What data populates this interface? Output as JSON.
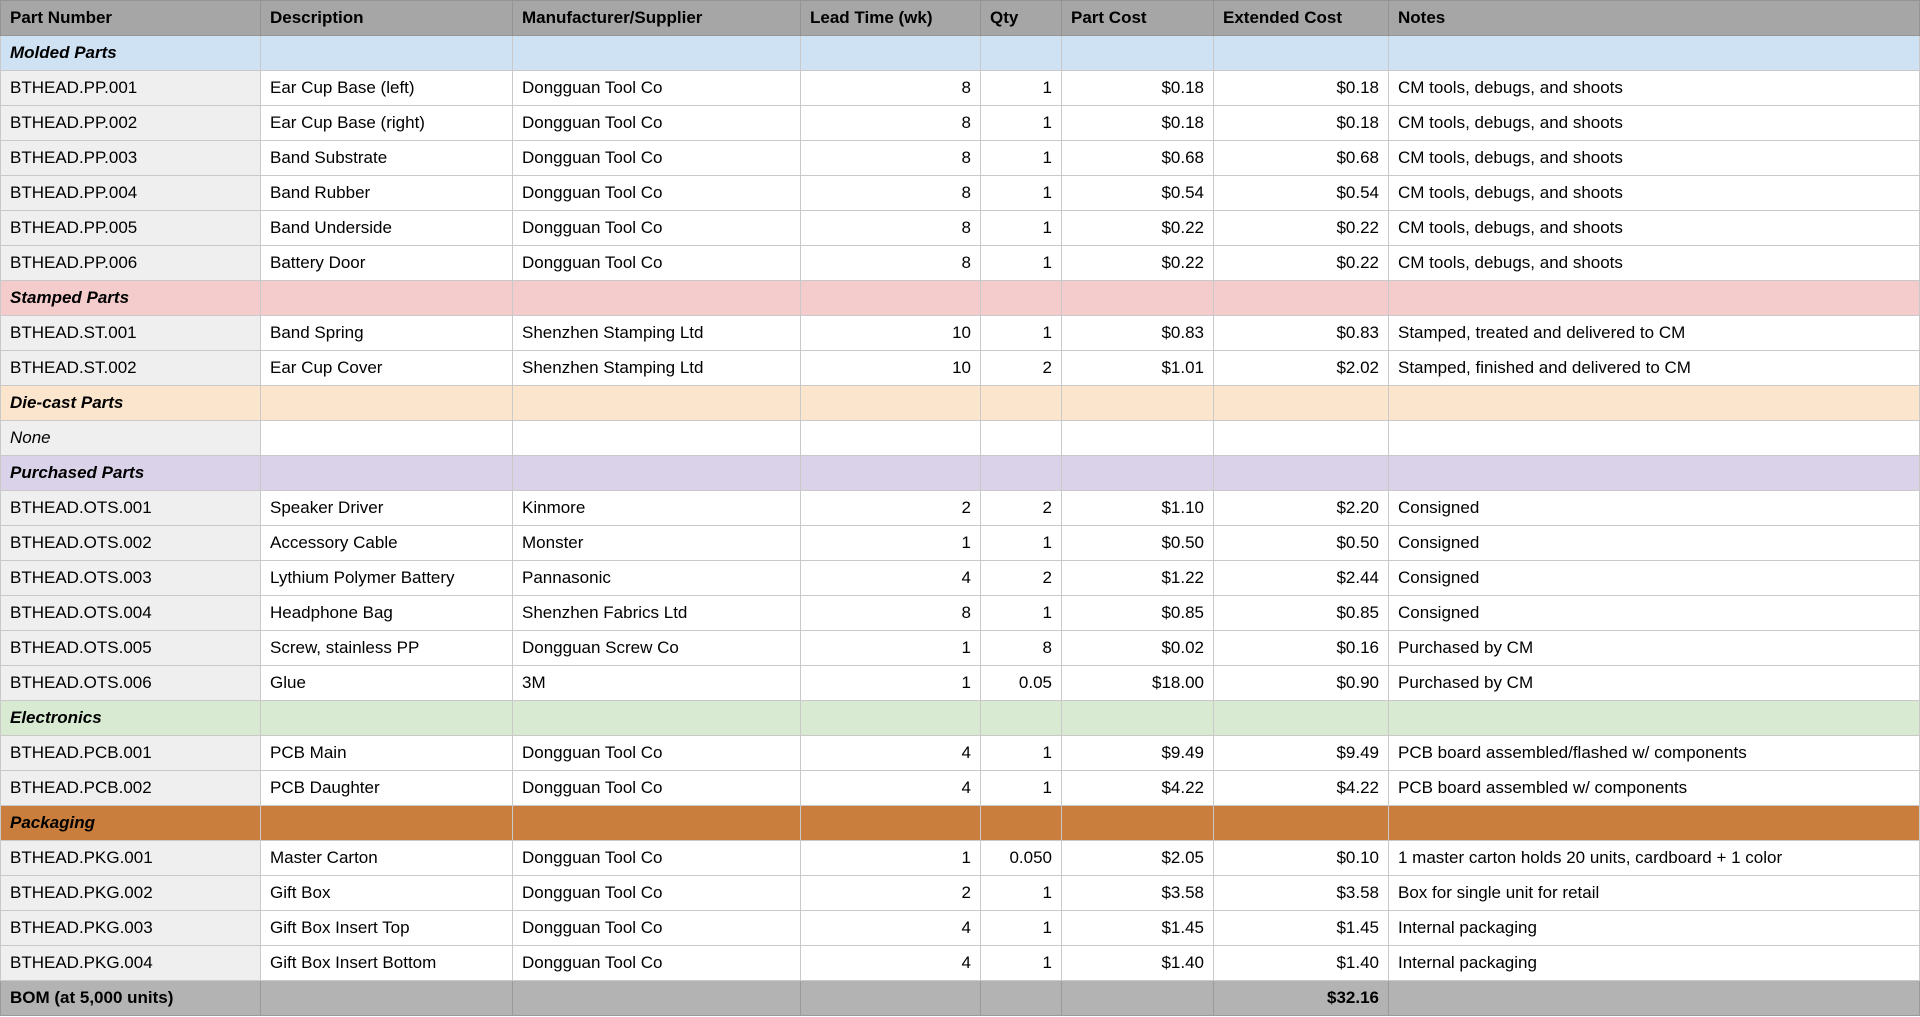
{
  "columns": [
    {
      "label": "Part Number",
      "align": "left"
    },
    {
      "label": "Description",
      "align": "left"
    },
    {
      "label": "Manufacturer/Supplier",
      "align": "left"
    },
    {
      "label": "Lead Time (wk)",
      "align": "right"
    },
    {
      "label": "Qty",
      "align": "right"
    },
    {
      "label": "Part Cost",
      "align": "right"
    },
    {
      "label": "Extended Cost",
      "align": "right"
    },
    {
      "label": "Notes",
      "align": "left"
    }
  ],
  "header_color": "#a6a6a6",
  "sections": [
    {
      "label": "Molded Parts",
      "color": "#cfe2f3",
      "rows": [
        [
          "BTHEAD.PP.001",
          "Ear Cup Base (left)",
          "Dongguan Tool Co",
          "8",
          "1",
          "$0.18",
          "$0.18",
          "CM tools, debugs, and shoots"
        ],
        [
          "BTHEAD.PP.002",
          "Ear Cup Base (right)",
          "Dongguan Tool Co",
          "8",
          "1",
          "$0.18",
          "$0.18",
          "CM tools, debugs, and shoots"
        ],
        [
          "BTHEAD.PP.003",
          "Band Substrate",
          "Dongguan Tool Co",
          "8",
          "1",
          "$0.68",
          "$0.68",
          "CM tools, debugs, and shoots"
        ],
        [
          "BTHEAD.PP.004",
          "Band Rubber",
          "Dongguan Tool Co",
          "8",
          "1",
          "$0.54",
          "$0.54",
          "CM tools, debugs, and shoots"
        ],
        [
          "BTHEAD.PP.005",
          "Band Underside",
          "Dongguan Tool Co",
          "8",
          "1",
          "$0.22",
          "$0.22",
          "CM tools, debugs, and shoots"
        ],
        [
          "BTHEAD.PP.006",
          "Battery Door",
          "Dongguan Tool Co",
          "8",
          "1",
          "$0.22",
          "$0.22",
          "CM tools, debugs, and shoots"
        ]
      ]
    },
    {
      "label": "Stamped Parts",
      "color": "#f4cccc",
      "rows": [
        [
          "BTHEAD.ST.001",
          "Band Spring",
          "Shenzhen Stamping Ltd",
          "10",
          "1",
          "$0.83",
          "$0.83",
          "Stamped, treated and delivered to CM"
        ],
        [
          "BTHEAD.ST.002",
          "Ear Cup Cover",
          "Shenzhen Stamping Ltd",
          "10",
          "2",
          "$1.01",
          "$2.02",
          "Stamped, finished and delivered to CM"
        ]
      ]
    },
    {
      "label": "Die-cast Parts",
      "color": "#fce5cd",
      "rows_style": "italic",
      "rows": [
        [
          "None",
          "",
          "",
          "",
          "",
          "",
          "",
          ""
        ]
      ]
    },
    {
      "label": "Purchased Parts",
      "color": "#d9d2e9",
      "rows": [
        [
          "BTHEAD.OTS.001",
          "Speaker Driver",
          "Kinmore",
          "2",
          "2",
          "$1.10",
          "$2.20",
          "Consigned"
        ],
        [
          "BTHEAD.OTS.002",
          "Accessory Cable",
          "Monster",
          "1",
          "1",
          "$0.50",
          "$0.50",
          "Consigned"
        ],
        [
          "BTHEAD.OTS.003",
          "Lythium Polymer Battery",
          "Pannasonic",
          "4",
          "2",
          "$1.22",
          "$2.44",
          "Consigned"
        ],
        [
          "BTHEAD.OTS.004",
          "Headphone Bag",
          "Shenzhen Fabrics Ltd",
          "8",
          "1",
          "$0.85",
          "$0.85",
          "Consigned"
        ],
        [
          "BTHEAD.OTS.005",
          "Screw, stainless PP",
          "Dongguan Screw Co",
          "1",
          "8",
          "$0.02",
          "$0.16",
          "Purchased by CM"
        ],
        [
          "BTHEAD.OTS.006",
          "Glue",
          "3M",
          "1",
          "0.05",
          "$18.00",
          "$0.90",
          "Purchased by CM"
        ]
      ]
    },
    {
      "label": "Electronics",
      "color": "#d9ead3",
      "rows": [
        [
          "BTHEAD.PCB.001",
          "PCB Main",
          "Dongguan Tool Co",
          "4",
          "1",
          "$9.49",
          "$9.49",
          "PCB board assembled/flashed w/ components"
        ],
        [
          "BTHEAD.PCB.002",
          "PCB Daughter",
          "Dongguan Tool Co",
          "4",
          "1",
          "$4.22",
          "$4.22",
          "PCB board assembled w/ components"
        ]
      ]
    },
    {
      "label": "Packaging",
      "color": "#c97e3d",
      "rows": [
        [
          "BTHEAD.PKG.001",
          "Master Carton",
          "Dongguan Tool Co",
          "1",
          "0.050",
          "$2.05",
          "$0.10",
          "1 master carton holds 20 units, cardboard + 1 color"
        ],
        [
          "BTHEAD.PKG.002",
          "Gift Box",
          "Dongguan Tool Co",
          "2",
          "1",
          "$3.58",
          "$3.58",
          "Box for single unit for retail"
        ],
        [
          "BTHEAD.PKG.003",
          "Gift Box Insert Top",
          "Dongguan Tool Co",
          "4",
          "1",
          "$1.45",
          "$1.45",
          "Internal packaging"
        ],
        [
          "BTHEAD.PKG.004",
          "Gift Box Insert Bottom",
          "Dongguan Tool Co",
          "4",
          "1",
          "$1.40",
          "$1.40",
          "Internal packaging"
        ]
      ]
    }
  ],
  "footer": {
    "label": "BOM (at 5,000 units)",
    "extended_cost_total": "$32.16",
    "color": "#b3b3b3"
  }
}
